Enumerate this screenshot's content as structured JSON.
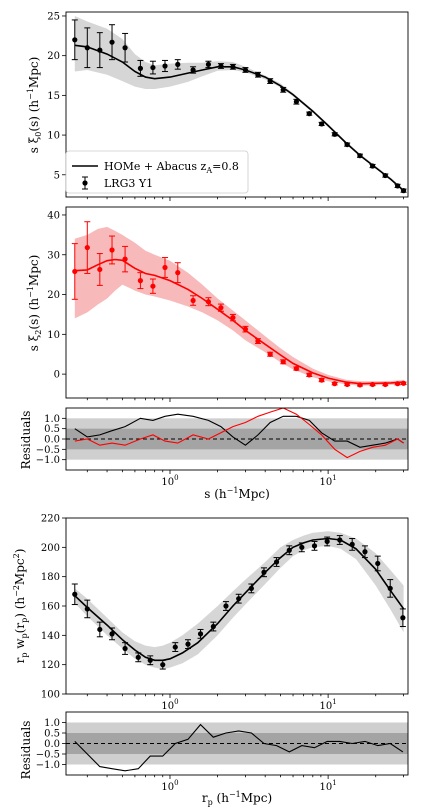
{
  "chart_data": [
    {
      "id": "xi0",
      "type": "line",
      "xscale": "log",
      "xlim": [
        0.22,
        32
      ],
      "ylim": [
        2.2,
        25.5
      ],
      "yticks": [
        5,
        10,
        15,
        20,
        25
      ],
      "ylabel": "s ξ0(s) (h⁻¹Mpc)",
      "ylabel_base": "s ξ",
      "ylabel_sub": "0",
      "ylabel_rest": "(s) (h",
      "ylabel_sup": "−1",
      "ylabel_end": "Mpc)",
      "legend": {
        "placement": "lower-left",
        "model_prefix": "HOMe + Abacus z",
        "model_sub": "A",
        "model_suffix": "=0.8",
        "data_label": "LRG3 Y1"
      },
      "series": [
        {
          "role": "band",
          "color": "#808080",
          "x": [
            0.25,
            0.3,
            0.4,
            0.5,
            0.6,
            0.7,
            0.8,
            1.0,
            1.3,
            1.6,
            2.0,
            2.5,
            3.0,
            4.0,
            5.0,
            6.0,
            8.0,
            10.0,
            13.0,
            16.0,
            20.0,
            25.0,
            30.0
          ],
          "low": [
            18.0,
            18.2,
            17.6,
            16.8,
            16.1,
            15.8,
            15.8,
            16.1,
            16.7,
            17.4,
            18.1,
            18.2,
            17.9,
            17.0,
            16.0,
            14.9,
            12.8,
            11.0,
            8.9,
            7.3,
            5.8,
            4.3,
            2.9
          ],
          "high": [
            25.0,
            24.3,
            23.4,
            22.1,
            20.2,
            19.2,
            18.8,
            19.0,
            19.1,
            19.1,
            19.3,
            19.2,
            18.6,
            17.5,
            16.5,
            15.3,
            13.2,
            11.4,
            9.2,
            7.6,
            6.1,
            4.6,
            3.2
          ]
        },
        {
          "role": "model",
          "color": "#000000",
          "x": [
            0.25,
            0.3,
            0.4,
            0.5,
            0.6,
            0.7,
            0.8,
            1.0,
            1.3,
            1.6,
            2.0,
            2.5,
            3.0,
            4.0,
            5.0,
            6.0,
            8.0,
            10.0,
            13.0,
            16.0,
            20.0,
            25.0,
            30.0
          ],
          "y": [
            21.3,
            21.1,
            20.2,
            19.2,
            18.0,
            17.3,
            17.1,
            17.3,
            17.8,
            18.2,
            18.6,
            18.6,
            18.2,
            17.3,
            16.2,
            15.1,
            13.0,
            11.2,
            9.0,
            7.4,
            5.9,
            4.4,
            3.0
          ]
        },
        {
          "role": "data",
          "color": "#000000",
          "name": "LRG3 Y1",
          "x": [
            0.25,
            0.3,
            0.36,
            0.43,
            0.52,
            0.65,
            0.78,
            0.93,
            1.12,
            1.4,
            1.75,
            2.1,
            2.5,
            3.0,
            3.6,
            4.3,
            5.2,
            6.3,
            7.6,
            9.1,
            11.0,
            13.2,
            15.9,
            19.1,
            23.0,
            27.5,
            30.0
          ],
          "y": [
            22.0,
            21.0,
            20.7,
            21.7,
            21.0,
            18.4,
            18.5,
            18.7,
            18.9,
            18.2,
            18.9,
            18.7,
            18.6,
            18.2,
            17.6,
            16.8,
            15.7,
            14.2,
            12.7,
            11.4,
            10.1,
            8.8,
            7.4,
            6.1,
            4.9,
            3.6,
            3.0
          ],
          "err": [
            2.5,
            2.5,
            2.2,
            2.2,
            1.8,
            1.0,
            0.8,
            0.7,
            0.6,
            0.4,
            0.4,
            0.3,
            0.3,
            0.3,
            0.3,
            0.3,
            0.3,
            0.3,
            0.2,
            0.2,
            0.2,
            0.2,
            0.2,
            0.2,
            0.2,
            0.2,
            0.2
          ]
        }
      ]
    },
    {
      "id": "xi2",
      "type": "line",
      "xscale": "log",
      "xlim": [
        0.22,
        32
      ],
      "ylim": [
        -6,
        42
      ],
      "yticks": [
        0,
        10,
        20,
        30,
        40
      ],
      "ylabel": "s ξ2(s) (h⁻¹Mpc)",
      "ylabel_base": "s ξ",
      "ylabel_sub": "2",
      "ylabel_rest": "(s) (h",
      "ylabel_sup": "−1",
      "ylabel_end": "Mpc)",
      "series": [
        {
          "role": "band",
          "color": "#f08080",
          "x": [
            0.25,
            0.3,
            0.35,
            0.4,
            0.45,
            0.5,
            0.6,
            0.7,
            0.8,
            1.0,
            1.3,
            1.6,
            2.0,
            2.5,
            3.0,
            4.0,
            5.0,
            6.0,
            8.0,
            10.0,
            13.0,
            16.0,
            20.0,
            25.0,
            30.0
          ],
          "low": [
            14.0,
            15.5,
            17.5,
            19.0,
            21.0,
            22.5,
            21.0,
            20.0,
            19.5,
            18.5,
            17.0,
            15.5,
            13.5,
            11.0,
            8.5,
            5.5,
            3.0,
            1.2,
            -0.8,
            -1.8,
            -2.6,
            -2.9,
            -2.8,
            -2.7,
            -2.5
          ],
          "high": [
            34.0,
            35.0,
            36.5,
            37.0,
            36.0,
            35.0,
            33.0,
            31.0,
            30.0,
            28.5,
            25.5,
            22.5,
            19.0,
            16.0,
            13.5,
            9.5,
            6.5,
            4.3,
            1.4,
            -0.2,
            -1.4,
            -1.8,
            -1.8,
            -1.7,
            -1.5
          ]
        },
        {
          "role": "model",
          "color": "#ff0000",
          "x": [
            0.25,
            0.3,
            0.35,
            0.4,
            0.45,
            0.5,
            0.6,
            0.7,
            0.8,
            1.0,
            1.3,
            1.6,
            2.0,
            2.5,
            3.0,
            4.0,
            5.0,
            6.0,
            8.0,
            10.0,
            13.0,
            16.0,
            20.0,
            25.0,
            30.0
          ],
          "y": [
            26.0,
            26.2,
            27.5,
            28.5,
            28.8,
            28.6,
            26.6,
            25.3,
            24.8,
            23.5,
            21.3,
            19.0,
            16.3,
            13.5,
            11.0,
            7.5,
            4.8,
            2.7,
            0.3,
            -1.0,
            -2.0,
            -2.4,
            -2.3,
            -2.2,
            -2.0
          ]
        },
        {
          "role": "data",
          "color": "#ff0000",
          "name": "LRG3 Y1",
          "x": [
            0.25,
            0.3,
            0.36,
            0.43,
            0.52,
            0.65,
            0.78,
            0.93,
            1.12,
            1.4,
            1.75,
            2.1,
            2.5,
            3.0,
            3.6,
            4.3,
            5.2,
            6.3,
            7.6,
            9.1,
            11.0,
            13.2,
            15.9,
            19.1,
            23.0,
            27.5,
            30.0
          ],
          "y": [
            25.8,
            31.8,
            26.3,
            31.2,
            28.9,
            23.5,
            22.1,
            26.8,
            25.5,
            18.5,
            18.2,
            16.7,
            14.2,
            11.3,
            8.3,
            5.0,
            3.1,
            1.4,
            -0.2,
            -1.5,
            -2.4,
            -2.6,
            -2.7,
            -2.6,
            -2.6,
            -2.4,
            -2.3
          ],
          "err": [
            7.0,
            6.5,
            4.0,
            3.5,
            3.2,
            2.0,
            1.8,
            2.5,
            2.5,
            1.2,
            1.0,
            0.9,
            0.8,
            0.7,
            0.6,
            0.5,
            0.5,
            0.4,
            0.4,
            0.4,
            0.3,
            0.3,
            0.3,
            0.3,
            0.3,
            0.3,
            0.3
          ]
        }
      ]
    },
    {
      "id": "res1",
      "type": "line",
      "xscale": "log",
      "xlim": [
        0.22,
        32
      ],
      "ylim": [
        -1.5,
        1.5
      ],
      "yticks": [
        1.0,
        0.5,
        0.0,
        -0.5,
        -1.0
      ],
      "ytick_labels": [
        "1.0",
        "0.5",
        "0.0",
        "−0.5",
        "−1.0"
      ],
      "xticks": [
        1,
        10
      ],
      "ylabel": "Residuals",
      "xlabel": "s (h⁻¹Mpc)",
      "xlabel_pre": "s (h",
      "xlabel_sup": "−1",
      "xlabel_end": "Mpc)",
      "bands": [
        {
          "low": -1.0,
          "high": 1.0,
          "color": "#cfcfcf"
        },
        {
          "low": -0.5,
          "high": 0.5,
          "color": "#a4a4a4"
        }
      ],
      "series": [
        {
          "role": "residual",
          "color": "#000000",
          "x": [
            0.25,
            0.3,
            0.36,
            0.43,
            0.52,
            0.65,
            0.78,
            0.93,
            1.12,
            1.4,
            1.75,
            2.1,
            2.5,
            3.0,
            3.6,
            4.3,
            5.2,
            6.3,
            7.6,
            9.1,
            11.0,
            13.2,
            15.9,
            19.1,
            23.0,
            27.5,
            30.0
          ],
          "y": [
            0.5,
            0.1,
            0.2,
            0.4,
            0.6,
            1.0,
            0.9,
            1.1,
            1.2,
            1.1,
            0.9,
            0.6,
            0.1,
            -0.3,
            0.2,
            0.8,
            1.1,
            1.1,
            0.9,
            0.3,
            -0.1,
            -0.1,
            -0.4,
            -0.3,
            -0.2,
            0.0,
            -0.2
          ]
        },
        {
          "role": "residual",
          "color": "#ff0000",
          "x": [
            0.25,
            0.3,
            0.36,
            0.43,
            0.52,
            0.65,
            0.78,
            0.93,
            1.12,
            1.4,
            1.75,
            2.1,
            2.5,
            3.0,
            3.6,
            4.3,
            5.2,
            6.3,
            7.6,
            9.1,
            11.0,
            13.2,
            15.9,
            19.1,
            23.0,
            27.5,
            30.0
          ],
          "y": [
            -0.1,
            0.0,
            -0.3,
            -0.2,
            -0.3,
            0.0,
            0.2,
            -0.1,
            -0.2,
            0.2,
            0.0,
            0.3,
            0.6,
            0.8,
            1.1,
            1.3,
            1.5,
            1.2,
            0.7,
            0.2,
            -0.5,
            -0.9,
            -0.6,
            -0.4,
            -0.3,
            0.0,
            -0.2
          ]
        }
      ]
    },
    {
      "id": "wp",
      "type": "line",
      "xscale": "log",
      "xlim": [
        0.22,
        32
      ],
      "ylim": [
        100,
        220
      ],
      "yticks": [
        100,
        120,
        140,
        160,
        180,
        200,
        220
      ],
      "xticks": [
        1,
        10
      ],
      "ylabel": "rp wp(rp) (h⁻²Mpc²)",
      "series": [
        {
          "role": "band",
          "color": "#808080",
          "x": [
            0.25,
            0.3,
            0.4,
            0.5,
            0.6,
            0.7,
            0.8,
            0.9,
            1.0,
            1.2,
            1.5,
            2.0,
            2.5,
            3.0,
            4.0,
            5.0,
            6.0,
            7.0,
            8.0,
            10.0,
            12.0,
            15.0,
            20.0,
            25.0,
            30.0
          ],
          "low": [
            162,
            153,
            140,
            131,
            124,
            120,
            118,
            117,
            118,
            121,
            127,
            140,
            152,
            161,
            175,
            186,
            194,
            198,
            200,
            201,
            199,
            192,
            174,
            157,
            142
          ],
          "high": [
            172,
            165,
            152,
            142,
            136,
            133,
            132,
            133,
            135,
            140,
            148,
            160,
            170,
            178,
            190,
            200,
            205,
            208,
            210,
            211,
            210,
            206,
            196,
            184,
            174
          ]
        },
        {
          "role": "model",
          "color": "#000000",
          "x": [
            0.25,
            0.3,
            0.4,
            0.5,
            0.6,
            0.7,
            0.8,
            0.9,
            1.0,
            1.2,
            1.5,
            2.0,
            2.5,
            3.0,
            4.0,
            5.0,
            6.0,
            7.0,
            8.0,
            10.0,
            12.0,
            15.0,
            20.0,
            25.0,
            30.0
          ],
          "y": [
            167,
            159,
            147,
            137,
            130,
            125,
            123,
            123,
            124,
            128,
            135,
            148,
            160,
            169,
            183,
            193,
            200,
            203,
            205,
            206,
            205,
            199,
            185,
            170,
            158
          ]
        },
        {
          "role": "data",
          "color": "#000000",
          "x": [
            0.25,
            0.3,
            0.36,
            0.43,
            0.52,
            0.63,
            0.75,
            0.9,
            1.08,
            1.3,
            1.56,
            1.88,
            2.26,
            2.72,
            3.27,
            3.93,
            4.72,
            5.68,
            6.82,
            8.2,
            9.86,
            11.85,
            14.2,
            17.1,
            20.6,
            24.7,
            29.7
          ],
          "y": [
            168,
            158,
            144,
            141,
            131,
            125,
            123,
            120,
            132,
            134,
            141,
            146,
            160,
            165,
            172,
            183,
            190,
            198,
            200,
            201,
            204,
            205,
            202,
            197,
            189,
            172,
            152
          ],
          "err": [
            7,
            6,
            5,
            4,
            4,
            3,
            3,
            3,
            3,
            3,
            3,
            3,
            3,
            3,
            3,
            3,
            3,
            3,
            3,
            3,
            3,
            3,
            4,
            4,
            5,
            6,
            6
          ]
        }
      ]
    },
    {
      "id": "res2",
      "type": "line",
      "xscale": "log",
      "xlim": [
        0.22,
        32
      ],
      "ylim": [
        -1.5,
        1.5
      ],
      "yticks": [
        1.0,
        0.5,
        0.0,
        -0.5,
        -1.0
      ],
      "ytick_labels": [
        "1.0",
        "0.5",
        "0.0",
        "−0.5",
        "−1.0"
      ],
      "xticks": [
        1,
        10
      ],
      "ylabel": "Residuals",
      "xlabel": "rp (h⁻¹Mpc)",
      "xlabel_pre": "r",
      "xlabel_sub": "p",
      "xlabel_mid": " (h",
      "xlabel_sup": "−1",
      "xlabel_end": "Mpc)",
      "bands": [
        {
          "low": -1.0,
          "high": 1.0,
          "color": "#cfcfcf"
        },
        {
          "low": -0.5,
          "high": 0.5,
          "color": "#a4a4a4"
        }
      ],
      "series": [
        {
          "role": "residual",
          "color": "#000000",
          "x": [
            0.25,
            0.3,
            0.36,
            0.43,
            0.52,
            0.63,
            0.75,
            0.9,
            1.08,
            1.3,
            1.56,
            1.88,
            2.26,
            2.72,
            3.27,
            3.93,
            4.72,
            5.68,
            6.82,
            8.2,
            9.86,
            11.85,
            14.2,
            17.1,
            20.6,
            24.7,
            29.7
          ],
          "y": [
            0.1,
            -0.5,
            -1.1,
            -1.2,
            -1.3,
            -1.2,
            -0.6,
            -0.6,
            0.0,
            0.2,
            0.9,
            0.3,
            0.5,
            0.6,
            0.5,
            0.0,
            -0.1,
            -0.4,
            -0.1,
            -0.2,
            0.1,
            0.1,
            0.0,
            0.1,
            -0.1,
            0.0,
            -0.4
          ]
        }
      ]
    }
  ],
  "figure": {
    "wp_ylabel_pre": "r",
    "wp_ylabel_sub1": "p",
    "wp_ylabel_mid1": " w",
    "wp_ylabel_sub2": "p",
    "wp_ylabel_mid2": "(r",
    "wp_ylabel_sub3": "p",
    "wp_ylabel_mid3": ") (h",
    "wp_ylabel_sup1": "−2",
    "wp_ylabel_mid4": "Mpc",
    "wp_ylabel_sup2": "2",
    "wp_ylabel_end": ")",
    "xtick_label_base": "10",
    "xtick_exp": [
      "0",
      "1"
    ]
  }
}
